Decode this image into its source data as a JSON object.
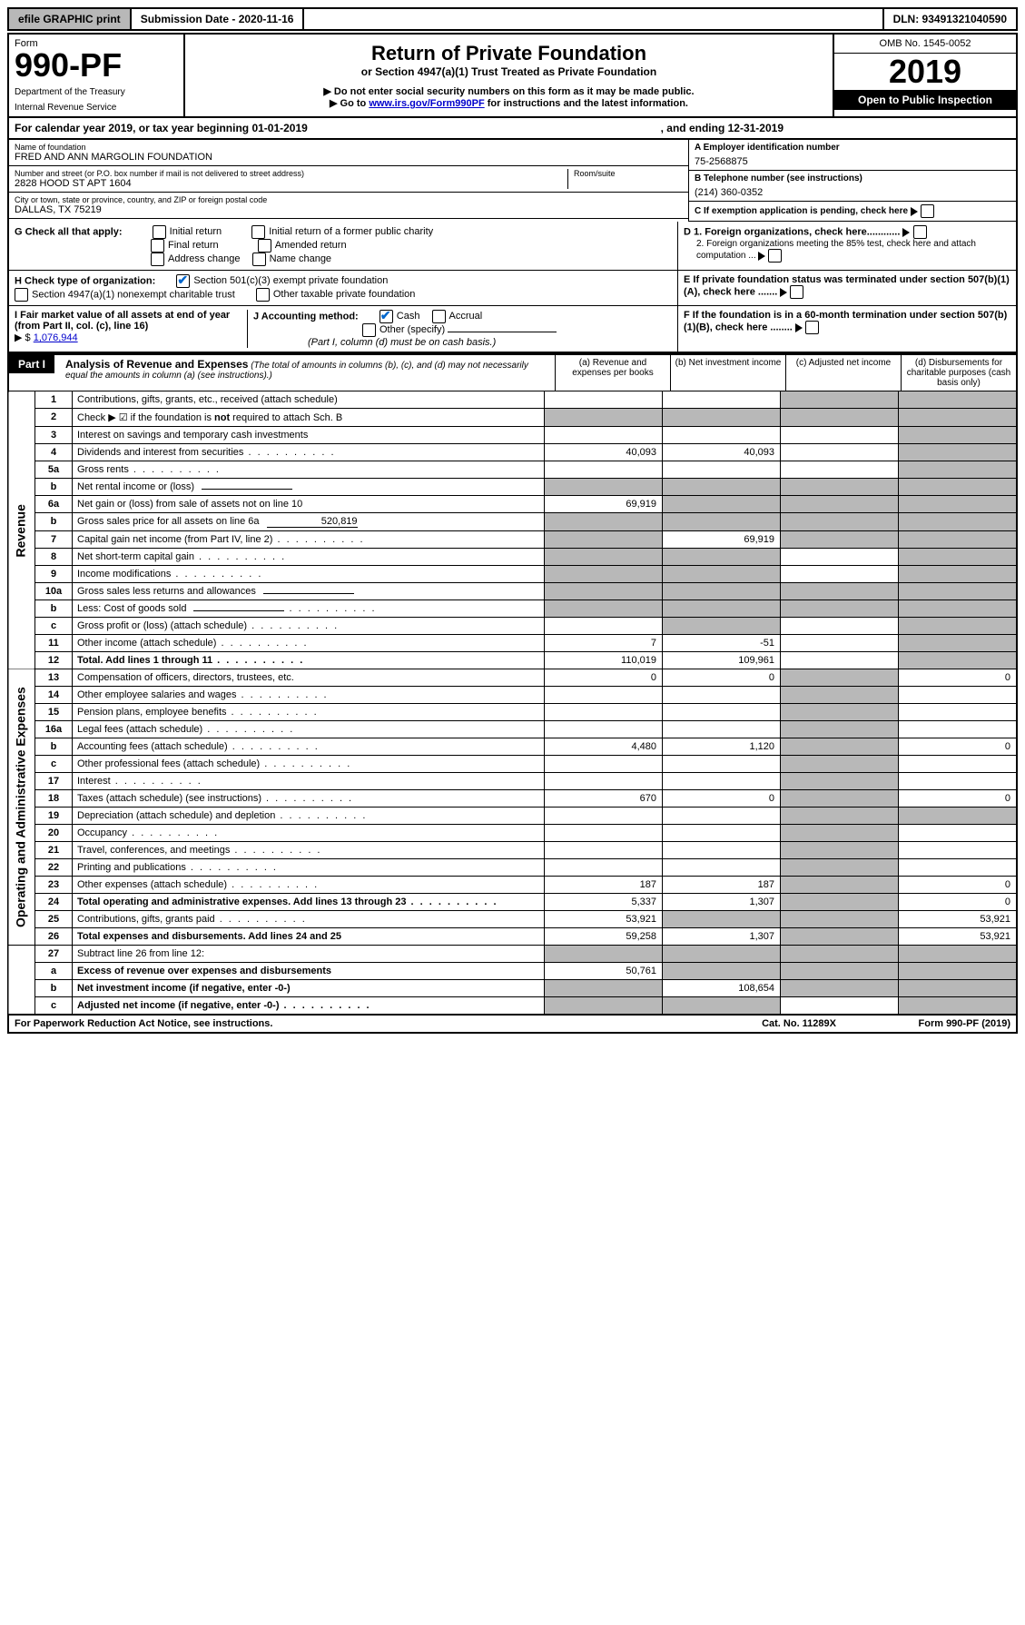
{
  "topBar": {
    "efile": "efile GRAPHIC print",
    "submission": "Submission Date - 2020-11-16",
    "dln": "DLN: 93491321040590"
  },
  "header": {
    "form": "Form",
    "formNo": "990-PF",
    "dept": "Department of the Treasury",
    "irs": "Internal Revenue Service",
    "title": "Return of Private Foundation",
    "subtitle": "or Section 4947(a)(1) Trust Treated as Private Foundation",
    "bullet1": "▶ Do not enter social security numbers on this form as it may be made public.",
    "bullet2_pre": "▶ Go to ",
    "bullet2_link": "www.irs.gov/Form990PF",
    "bullet2_post": " for instructions and the latest information.",
    "omb": "OMB No. 1545-0052",
    "year": "2019",
    "open": "Open to Public Inspection"
  },
  "calendar": {
    "text": "For calendar year 2019, or tax year beginning 01-01-2019",
    "ending": ", and ending 12-31-2019"
  },
  "info": {
    "nameLabel": "Name of foundation",
    "name": "FRED AND ANN MARGOLIN FOUNDATION",
    "addrLabel": "Number and street (or P.O. box number if mail is not delivered to street address)",
    "addr": "2828 HOOD ST APT 1604",
    "roomLabel": "Room/suite",
    "cityLabel": "City or town, state or province, country, and ZIP or foreign postal code",
    "city": "DALLAS, TX  75219",
    "A_label": "A Employer identification number",
    "A_val": "75-2568875",
    "B_label": "B Telephone number (see instructions)",
    "B_val": "(214) 360-0352",
    "C_label": "C If exemption application is pending, check here",
    "D1": "D 1. Foreign organizations, check here............",
    "D2": "2. Foreign organizations meeting the 85% test, check here and attach computation ...",
    "E": "E  If private foundation status was terminated under section 507(b)(1)(A), check here .......",
    "F": "F  If the foundation is in a 60-month termination under section 507(b)(1)(B), check here ........"
  },
  "G": {
    "label": "G Check all that apply:",
    "opts": [
      "Initial return",
      "Initial return of a former public charity",
      "Final return",
      "Amended return",
      "Address change",
      "Name change"
    ]
  },
  "H": {
    "label": "H Check type of organization:",
    "opt1": "Section 501(c)(3) exempt private foundation",
    "opt2": "Section 4947(a)(1) nonexempt charitable trust",
    "opt3": "Other taxable private foundation"
  },
  "I": {
    "label": "I Fair market value of all assets at end of year (from Part II, col. (c), line 16)",
    "arrow": "▶ $",
    "val": "1,076,944"
  },
  "J": {
    "label": "J Accounting method:",
    "cash": "Cash",
    "accrual": "Accrual",
    "other": "Other (specify)",
    "note": "(Part I, column (d) must be on cash basis.)"
  },
  "part1": {
    "header": "Part I",
    "title": "Analysis of Revenue and Expenses",
    "note": "(The total of amounts in columns (b), (c), and (d) may not necessarily equal the amounts in column (a) (see instructions).)",
    "colA": "(a)   Revenue and expenses per books",
    "colB": "(b)  Net investment income",
    "colC": "(c)  Adjusted net income",
    "colD": "(d)  Disbursements for charitable purposes (cash basis only)"
  },
  "rows": [
    {
      "ln": "1",
      "desc": "Contributions, gifts, grants, etc., received (attach schedule)",
      "a": "",
      "b": "",
      "c": "grey",
      "d": "grey"
    },
    {
      "ln": "2",
      "desc": "Check ▶ ☑ if the foundation is not required to attach Sch. B",
      "a": "grey",
      "b": "grey",
      "c": "grey",
      "d": "grey",
      "dots": false,
      "bold_not": true
    },
    {
      "ln": "3",
      "desc": "Interest on savings and temporary cash investments",
      "a": "",
      "b": "",
      "c": "",
      "d": "grey"
    },
    {
      "ln": "4",
      "desc": "Dividends and interest from securities",
      "a": "40,093",
      "b": "40,093",
      "c": "",
      "d": "grey",
      "dots": true
    },
    {
      "ln": "5a",
      "desc": "Gross rents",
      "a": "",
      "b": "",
      "c": "",
      "d": "grey",
      "dots": true
    },
    {
      "ln": "b",
      "desc": "Net rental income or (loss)",
      "a": "grey",
      "b": "grey",
      "c": "grey",
      "d": "grey",
      "inline": true
    },
    {
      "ln": "6a",
      "desc": "Net gain or (loss) from sale of assets not on line 10",
      "a": "69,919",
      "b": "grey",
      "c": "grey",
      "d": "grey"
    },
    {
      "ln": "b",
      "desc": "Gross sales price for all assets on line 6a",
      "a": "grey",
      "b": "grey",
      "c": "grey",
      "d": "grey",
      "inline": true,
      "inline_val": "520,819"
    },
    {
      "ln": "7",
      "desc": "Capital gain net income (from Part IV, line 2)",
      "a": "grey",
      "b": "69,919",
      "c": "grey",
      "d": "grey",
      "dots": true
    },
    {
      "ln": "8",
      "desc": "Net short-term capital gain",
      "a": "grey",
      "b": "grey",
      "c": "",
      "d": "grey",
      "dots": true
    },
    {
      "ln": "9",
      "desc": "Income modifications",
      "a": "grey",
      "b": "grey",
      "c": "",
      "d": "grey",
      "dots": true
    },
    {
      "ln": "10a",
      "desc": "Gross sales less returns and allowances",
      "a": "grey",
      "b": "grey",
      "c": "grey",
      "d": "grey",
      "inline": true
    },
    {
      "ln": "b",
      "desc": "Less: Cost of goods sold",
      "a": "grey",
      "b": "grey",
      "c": "grey",
      "d": "grey",
      "inline": true,
      "dots": true
    },
    {
      "ln": "c",
      "desc": "Gross profit or (loss) (attach schedule)",
      "a": "",
      "b": "grey",
      "c": "",
      "d": "grey",
      "dots": true
    },
    {
      "ln": "11",
      "desc": "Other income (attach schedule)",
      "a": "7",
      "b": "-51",
      "c": "",
      "d": "grey",
      "dots": true
    },
    {
      "ln": "12",
      "desc": "Total. Add lines 1 through 11",
      "a": "110,019",
      "b": "109,961",
      "c": "",
      "d": "grey",
      "bold": true,
      "dots": true
    }
  ],
  "side1": "Revenue",
  "rows2": [
    {
      "ln": "13",
      "desc": "Compensation of officers, directors, trustees, etc.",
      "a": "0",
      "b": "0",
      "c": "grey",
      "d": "0"
    },
    {
      "ln": "14",
      "desc": "Other employee salaries and wages",
      "a": "",
      "b": "",
      "c": "grey",
      "d": "",
      "dots": true
    },
    {
      "ln": "15",
      "desc": "Pension plans, employee benefits",
      "a": "",
      "b": "",
      "c": "grey",
      "d": "",
      "dots": true
    },
    {
      "ln": "16a",
      "desc": "Legal fees (attach schedule)",
      "a": "",
      "b": "",
      "c": "grey",
      "d": "",
      "dots": true
    },
    {
      "ln": "b",
      "desc": "Accounting fees (attach schedule)",
      "a": "4,480",
      "b": "1,120",
      "c": "grey",
      "d": "0",
      "dots": true
    },
    {
      "ln": "c",
      "desc": "Other professional fees (attach schedule)",
      "a": "",
      "b": "",
      "c": "grey",
      "d": "",
      "dots": true
    },
    {
      "ln": "17",
      "desc": "Interest",
      "a": "",
      "b": "",
      "c": "grey",
      "d": "",
      "dots": true
    },
    {
      "ln": "18",
      "desc": "Taxes (attach schedule) (see instructions)",
      "a": "670",
      "b": "0",
      "c": "grey",
      "d": "0",
      "dots": true
    },
    {
      "ln": "19",
      "desc": "Depreciation (attach schedule) and depletion",
      "a": "",
      "b": "",
      "c": "grey",
      "d": "grey",
      "dots": true
    },
    {
      "ln": "20",
      "desc": "Occupancy",
      "a": "",
      "b": "",
      "c": "grey",
      "d": "",
      "dots": true
    },
    {
      "ln": "21",
      "desc": "Travel, conferences, and meetings",
      "a": "",
      "b": "",
      "c": "grey",
      "d": "",
      "dots": true
    },
    {
      "ln": "22",
      "desc": "Printing and publications",
      "a": "",
      "b": "",
      "c": "grey",
      "d": "",
      "dots": true
    },
    {
      "ln": "23",
      "desc": "Other expenses (attach schedule)",
      "a": "187",
      "b": "187",
      "c": "grey",
      "d": "0",
      "dots": true
    },
    {
      "ln": "24",
      "desc": "Total operating and administrative expenses. Add lines 13 through 23",
      "a": "5,337",
      "b": "1,307",
      "c": "grey",
      "d": "0",
      "bold": true,
      "dots": true
    },
    {
      "ln": "25",
      "desc": "Contributions, gifts, grants paid",
      "a": "53,921",
      "b": "grey",
      "c": "grey",
      "d": "53,921",
      "dots": true
    },
    {
      "ln": "26",
      "desc": "Total expenses and disbursements. Add lines 24 and 25",
      "a": "59,258",
      "b": "1,307",
      "c": "grey",
      "d": "53,921",
      "bold": true
    }
  ],
  "side2": "Operating and Administrative Expenses",
  "rows3": [
    {
      "ln": "27",
      "desc": "Subtract line 26 from line 12:",
      "a": "grey",
      "b": "grey",
      "c": "grey",
      "d": "grey"
    },
    {
      "ln": "a",
      "desc": "Excess of revenue over expenses and disbursements",
      "a": "50,761",
      "b": "grey",
      "c": "grey",
      "d": "grey",
      "bold": true
    },
    {
      "ln": "b",
      "desc": "Net investment income (if negative, enter -0-)",
      "a": "grey",
      "b": "108,654",
      "c": "grey",
      "d": "grey",
      "bold": true
    },
    {
      "ln": "c",
      "desc": "Adjusted net income (if negative, enter -0-)",
      "a": "grey",
      "b": "grey",
      "c": "",
      "d": "grey",
      "bold": true,
      "dots": true
    }
  ],
  "footer": {
    "paperwork": "For Paperwork Reduction Act Notice, see instructions.",
    "cat": "Cat. No. 11289X",
    "form": "Form 990-PF (2019)"
  }
}
